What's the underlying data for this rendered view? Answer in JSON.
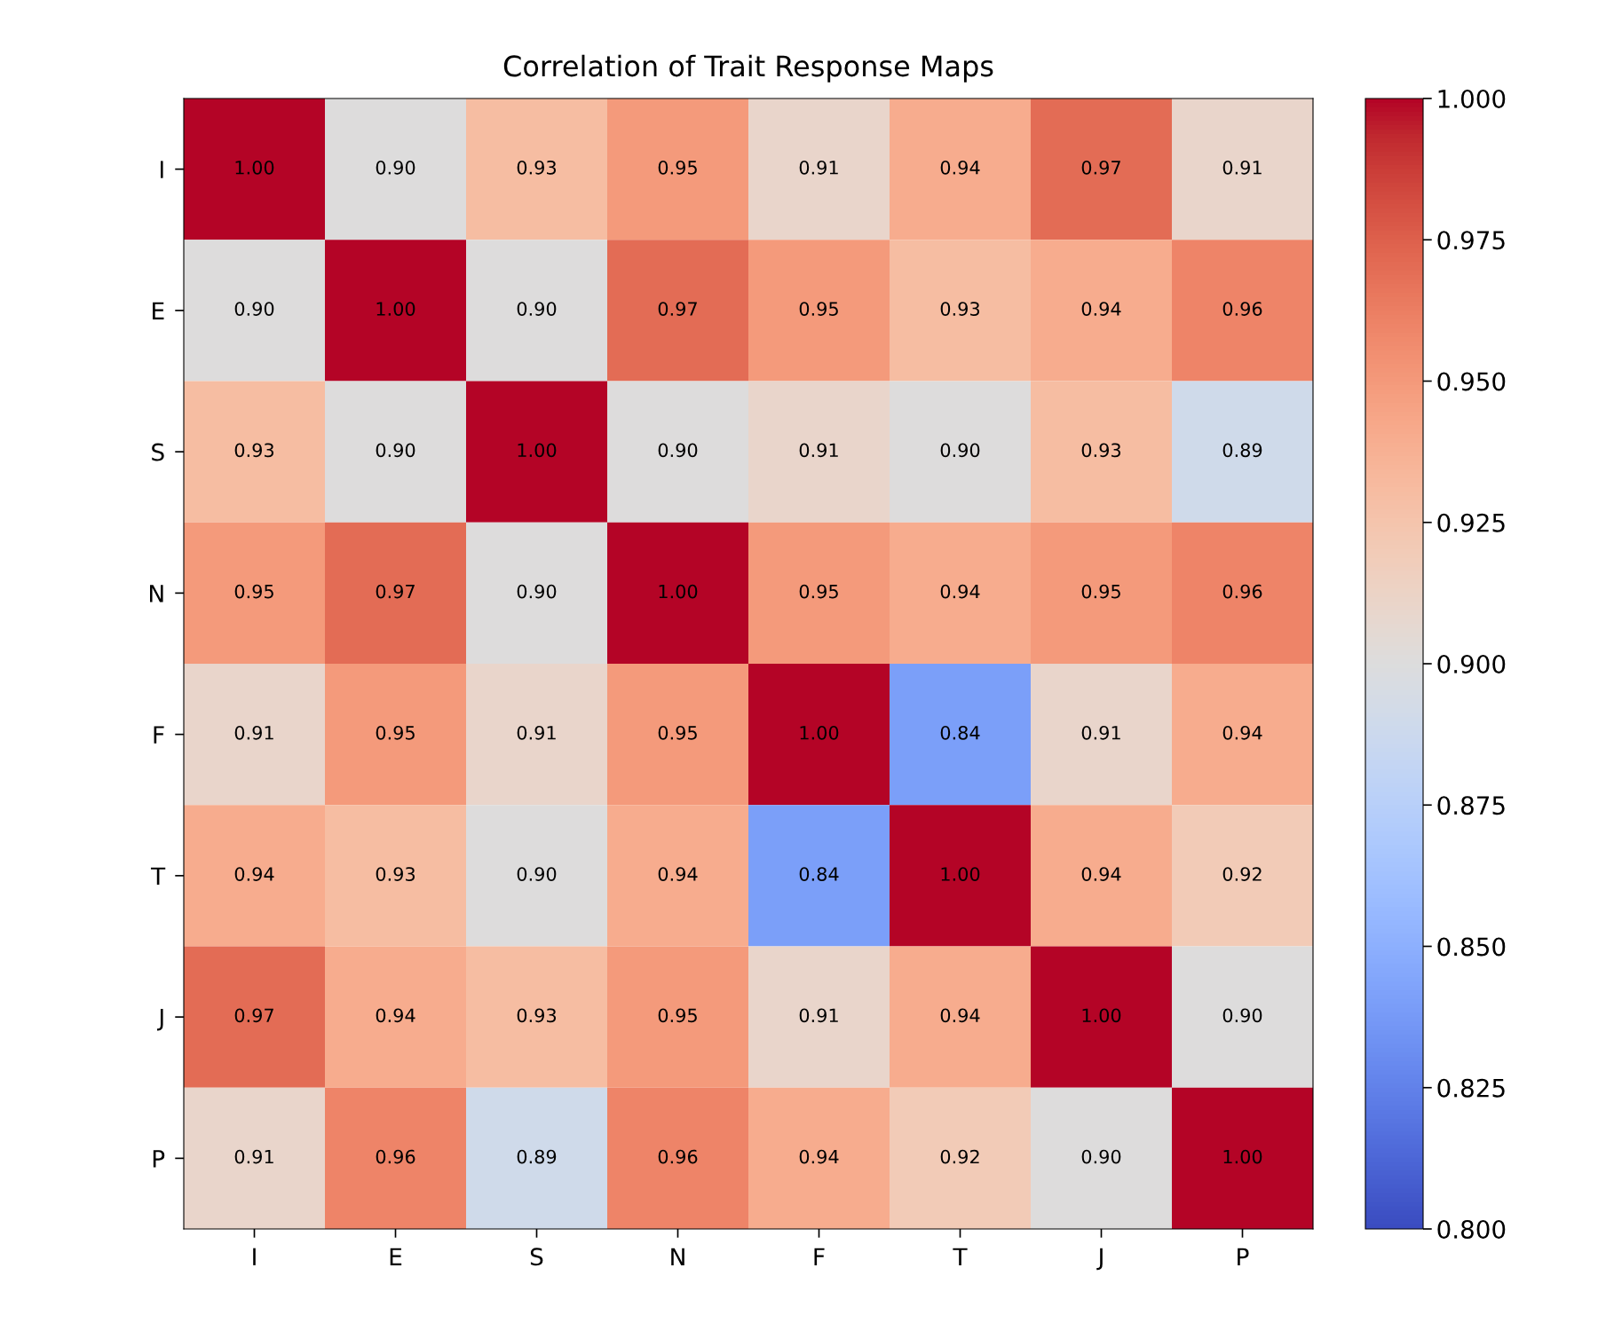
{
  "chart_data": {
    "type": "heatmap",
    "title": "Correlation of Trait Response Maps",
    "categories": [
      "I",
      "E",
      "S",
      "N",
      "F",
      "T",
      "J",
      "P"
    ],
    "y_categories": [
      "I",
      "E",
      "S",
      "N",
      "F",
      "T",
      "J",
      "P"
    ],
    "cells": [
      [
        1.0,
        0.9,
        0.93,
        0.95,
        0.91,
        0.94,
        0.97,
        0.91
      ],
      [
        0.9,
        1.0,
        0.9,
        0.97,
        0.95,
        0.93,
        0.94,
        0.96
      ],
      [
        0.93,
        0.9,
        1.0,
        0.9,
        0.91,
        0.9,
        0.93,
        0.89
      ],
      [
        0.95,
        0.97,
        0.9,
        1.0,
        0.95,
        0.94,
        0.95,
        0.96
      ],
      [
        0.91,
        0.95,
        0.91,
        0.95,
        1.0,
        0.84,
        0.91,
        0.94
      ],
      [
        0.94,
        0.93,
        0.9,
        0.94,
        0.84,
        1.0,
        0.94,
        0.92
      ],
      [
        0.97,
        0.94,
        0.93,
        0.95,
        0.91,
        0.94,
        1.0,
        0.9
      ],
      [
        0.91,
        0.96,
        0.89,
        0.96,
        0.94,
        0.92,
        0.9,
        1.0
      ]
    ],
    "cell_labels": [
      [
        "1.00",
        "0.90",
        "0.93",
        "0.95",
        "0.91",
        "0.94",
        "0.97",
        "0.91"
      ],
      [
        "0.90",
        "1.00",
        "0.90",
        "0.97",
        "0.95",
        "0.93",
        "0.94",
        "0.96"
      ],
      [
        "0.93",
        "0.90",
        "1.00",
        "0.90",
        "0.91",
        "0.90",
        "0.93",
        "0.89"
      ],
      [
        "0.95",
        "0.97",
        "0.90",
        "1.00",
        "0.95",
        "0.94",
        "0.95",
        "0.96"
      ],
      [
        "0.91",
        "0.95",
        "0.91",
        "0.95",
        "1.00",
        "0.84",
        "0.91",
        "0.94"
      ],
      [
        "0.94",
        "0.93",
        "0.90",
        "0.94",
        "0.84",
        "1.00",
        "0.94",
        "0.92"
      ],
      [
        "0.97",
        "0.94",
        "0.93",
        "0.95",
        "0.91",
        "0.94",
        "1.00",
        "0.90"
      ],
      [
        "0.91",
        "0.96",
        "0.89",
        "0.96",
        "0.94",
        "0.92",
        "0.90",
        "1.00"
      ]
    ],
    "clim": [
      0.8,
      1.0
    ],
    "cticks": [
      {
        "value": 0.8,
        "label": "0.800"
      },
      {
        "value": 0.825,
        "label": "0.825"
      },
      {
        "value": 0.85,
        "label": "0.850"
      },
      {
        "value": 0.875,
        "label": "0.875"
      },
      {
        "value": 0.9,
        "label": "0.900"
      },
      {
        "value": 0.925,
        "label": "0.925"
      },
      {
        "value": 0.95,
        "label": "0.950"
      },
      {
        "value": 0.975,
        "label": "0.975"
      },
      {
        "value": 1.0,
        "label": "1.000"
      }
    ]
  }
}
